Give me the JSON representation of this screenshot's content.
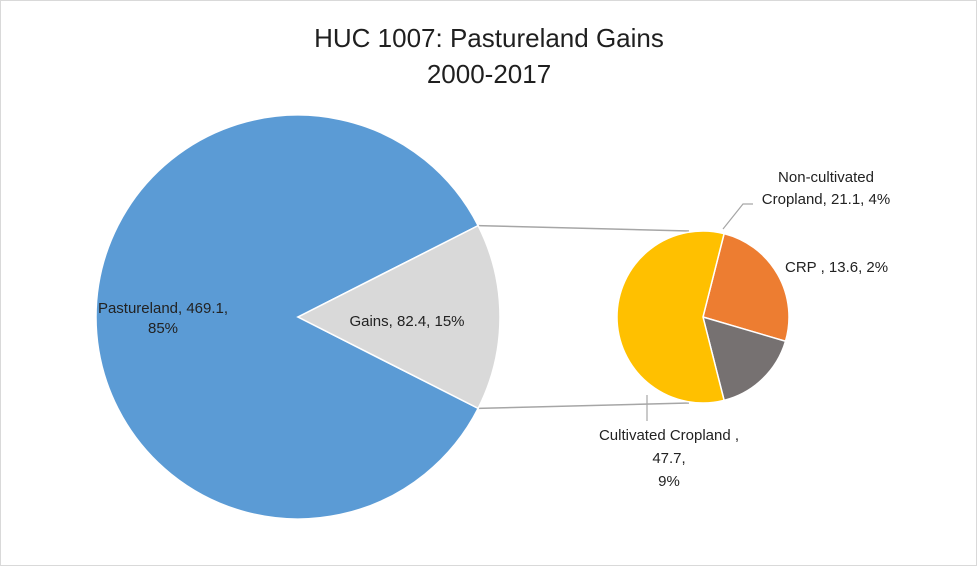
{
  "chart_data": {
    "type": "pie",
    "subtype": "pie-of-pie",
    "title_lines": [
      "HUC 1007: Pastureland Gains",
      "2000-2017"
    ],
    "units": "",
    "primary": [
      {
        "name": "Pastureland",
        "value": 469.1,
        "percent": "85%",
        "color": "#5b9bd5",
        "label_lines": [
          "Pastureland, 469.1,",
          "85%"
        ]
      },
      {
        "name": "Gains",
        "value": 82.4,
        "percent": "15%",
        "color": "#d9d9d9",
        "label_lines": [
          "Gains, 82.4, 15%"
        ]
      }
    ],
    "secondary": [
      {
        "name": "Non-cultivated Cropland",
        "value": 21.1,
        "percent": "4%",
        "color": "#ed7d31",
        "label_lines": [
          "Non-cultivated",
          "Cropland, 21.1, 4%"
        ]
      },
      {
        "name": "CRP",
        "value": 13.6,
        "percent": "2%",
        "color": "#767171",
        "label_lines": [
          "CRP , 13.6, 2%"
        ]
      },
      {
        "name": "Cultivated Cropland",
        "value": 47.7,
        "percent": "9%",
        "color": "#ffc000",
        "label_lines": [
          "Cultivated Cropland ,",
          "47.7,",
          "9%"
        ]
      }
    ],
    "legend": "none",
    "colors": {
      "connector": "#a6a6a6",
      "leader": "#a6a6a6",
      "slice_border": "#ffffff"
    }
  }
}
